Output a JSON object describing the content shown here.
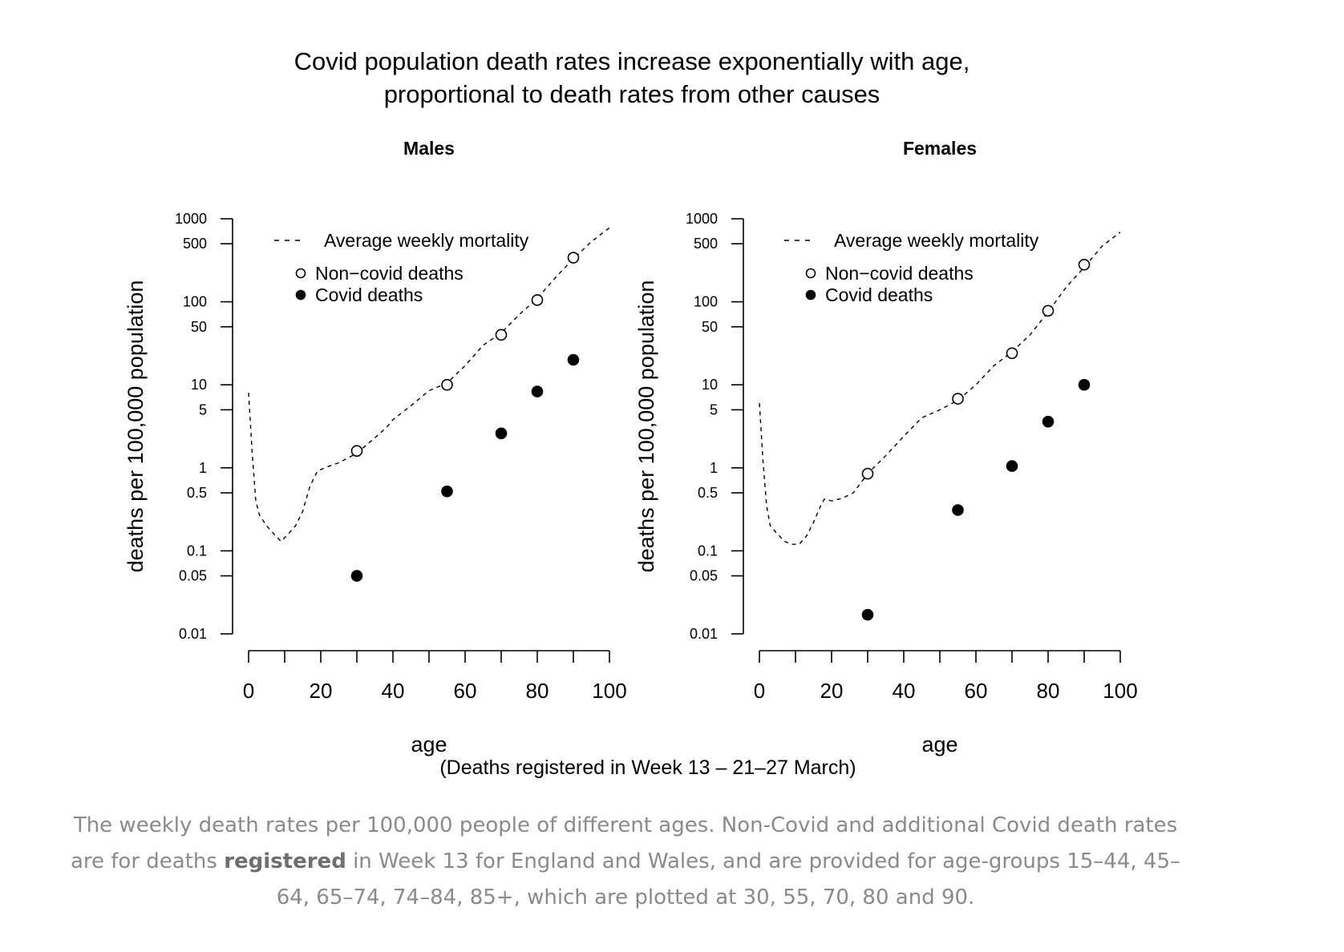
{
  "figure": {
    "title_line1": "Covid population death rates increase exponentially with age,",
    "title_line2": "proportional to death rates from other causes",
    "footnote": "(Deaths registered in Week 13 – 21–27 March)"
  },
  "caption": {
    "before": "The weekly death rates per 100,000 people of different ages. Non-Covid and additional Covid death rates are for deaths ",
    "bold": "registered",
    "after": " in Week 13 for England and Wales, and are provided for age-groups 15–44, 45–64, 65–74, 74–84, 85+, which are plotted at 30, 55, 70, 80 and 90.",
    "color": "#8a8a8a"
  },
  "chart_data": [
    {
      "type": "scatter",
      "title": "Males",
      "xlabel": "age",
      "ylabel": "deaths per 100,000 population",
      "xlim": [
        0,
        100
      ],
      "xticks": [
        0,
        10,
        20,
        30,
        40,
        50,
        60,
        70,
        80,
        90,
        100
      ],
      "xtick_labels": [
        "0",
        "20",
        "40",
        "60",
        "80",
        "100"
      ],
      "xtick_label_values": [
        0,
        20,
        40,
        60,
        80,
        100
      ],
      "ylim": [
        0.01,
        1000
      ],
      "yscale": "log",
      "yticks": [
        0.01,
        0.05,
        0.1,
        0.5,
        1,
        5,
        10,
        50,
        100,
        500,
        1000
      ],
      "ytick_labels": [
        "0.01",
        "0.05",
        "0.1",
        "0.5",
        "1",
        "5",
        "10",
        "50",
        "100",
        "500",
        "1000"
      ],
      "legend": [
        "Average weekly mortality",
        "Non−covid deaths",
        "Covid deaths"
      ],
      "legend_position": "top-left",
      "grid": false,
      "series": [
        {
          "name": "Average weekly mortality",
          "style": "dashed-line",
          "x": [
            0,
            1,
            2,
            3,
            5,
            7,
            9,
            11,
            13,
            15,
            17,
            19,
            21,
            25,
            30,
            35,
            38,
            40,
            45,
            50,
            55,
            60,
            65,
            70,
            75,
            80,
            85,
            90,
            95,
            100
          ],
          "y": [
            8,
            1.5,
            0.4,
            0.27,
            0.2,
            0.16,
            0.13,
            0.16,
            0.2,
            0.3,
            0.6,
            0.9,
            1.0,
            1.15,
            1.5,
            2.3,
            3.0,
            3.8,
            5.6,
            8.5,
            10.5,
            17,
            30,
            42,
            70,
            110,
            195,
            330,
            530,
            780
          ]
        },
        {
          "name": "Non−covid deaths",
          "style": "open-circle",
          "x": [
            30,
            55,
            70,
            80,
            90
          ],
          "y": [
            1.6,
            10,
            40,
            105,
            340
          ]
        },
        {
          "name": "Covid deaths",
          "style": "filled-circle",
          "x": [
            30,
            55,
            70,
            80,
            90
          ],
          "y": [
            0.05,
            0.52,
            2.6,
            8.3,
            20
          ]
        }
      ]
    },
    {
      "type": "scatter",
      "title": "Females",
      "xlabel": "age",
      "ylabel": "deaths per 100,000 population",
      "xlim": [
        0,
        100
      ],
      "xticks": [
        0,
        10,
        20,
        30,
        40,
        50,
        60,
        70,
        80,
        90,
        100
      ],
      "xtick_labels": [
        "0",
        "20",
        "40",
        "60",
        "80",
        "100"
      ],
      "xtick_label_values": [
        0,
        20,
        40,
        60,
        80,
        100
      ],
      "ylim": [
        0.01,
        1000
      ],
      "yscale": "log",
      "yticks": [
        0.01,
        0.05,
        0.1,
        0.5,
        1,
        5,
        10,
        50,
        100,
        500,
        1000
      ],
      "ytick_labels": [
        "0.01",
        "0.05",
        "0.1",
        "0.5",
        "1",
        "5",
        "10",
        "50",
        "100",
        "500",
        "1000"
      ],
      "legend": [
        "Average weekly mortality",
        "Non−covid deaths",
        "Covid deaths"
      ],
      "legend_position": "top-left",
      "grid": false,
      "series": [
        {
          "name": "Average weekly mortality",
          "style": "dashed-line",
          "x": [
            0,
            1,
            2,
            3,
            5,
            7,
            9,
            11,
            13,
            15,
            17,
            18,
            20,
            23,
            26,
            30,
            35,
            40,
            45,
            50,
            55,
            60,
            65,
            70,
            75,
            80,
            85,
            90,
            95,
            100
          ],
          "y": [
            6,
            1.2,
            0.35,
            0.2,
            0.16,
            0.13,
            0.12,
            0.12,
            0.15,
            0.22,
            0.35,
            0.42,
            0.4,
            0.43,
            0.5,
            0.85,
            1.4,
            2.4,
            4.0,
            5.0,
            6.5,
            10,
            17,
            25,
            40,
            75,
            150,
            260,
            470,
            690
          ]
        },
        {
          "name": "Non−covid deaths",
          "style": "open-circle",
          "x": [
            30,
            55,
            70,
            80,
            90
          ],
          "y": [
            0.85,
            6.8,
            24,
            78,
            280
          ]
        },
        {
          "name": "Covid deaths",
          "style": "filled-circle",
          "x": [
            30,
            55,
            70,
            80,
            90
          ],
          "y": [
            0.017,
            0.31,
            1.05,
            3.6,
            10
          ]
        }
      ]
    }
  ]
}
